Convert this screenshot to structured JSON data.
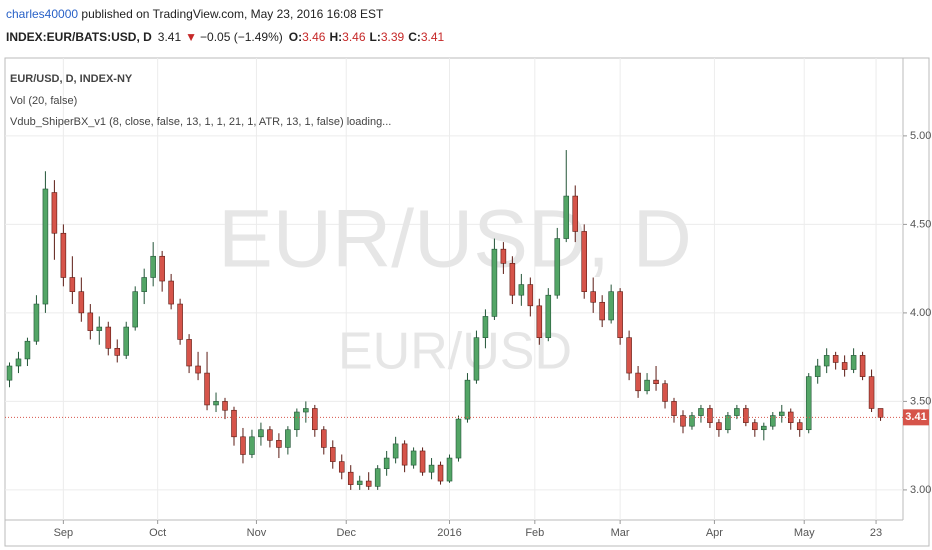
{
  "header": {
    "author": "charles40000",
    "published": " published on TradingView.com, May 23, 2016 16:08 EST",
    "symbol": "INDEX:EUR/BATS:USD, D",
    "last_price": "3.41",
    "arrow": "▼",
    "change": "−0.05 (−1.49%)",
    "ohlc": [
      {
        "label": "O:",
        "value": "3.46"
      },
      {
        "label": "H:",
        "value": "3.46"
      },
      {
        "label": "L:",
        "value": "3.39"
      },
      {
        "label": "C:",
        "value": "3.41"
      }
    ]
  },
  "chart_data": {
    "type": "candlestick",
    "legend_lines": [
      "EUR/USD, D, INDEX-NY",
      "Vol (20, false)",
      "Vdub_ShiperBX_v1 (8, close, false, 13, 1, 1, 21, 1, ATR, 13, 1, false) loading..."
    ],
    "watermark": [
      "EUR/USD, D",
      "EUR/USD"
    ],
    "up_color": "#53a566",
    "down_color": "#d6544a",
    "grid": true,
    "last": 3.41,
    "xlim": [
      0,
      100
    ],
    "xticks": [
      {
        "value": 6.5,
        "label": "Sep"
      },
      {
        "value": 17,
        "label": "Oct"
      },
      {
        "value": 28,
        "label": "Nov"
      },
      {
        "value": 38,
        "label": "Dec"
      },
      {
        "value": 49.5,
        "label": "2016"
      },
      {
        "value": 59,
        "label": "Feb"
      },
      {
        "value": 68.5,
        "label": "Mar"
      },
      {
        "value": 79,
        "label": "Apr"
      },
      {
        "value": 89,
        "label": "May"
      },
      {
        "value": 97,
        "label": "23"
      }
    ],
    "ylim": [
      2.83,
      5.44
    ],
    "yticks": [
      {
        "value": 3,
        "label": "3.00"
      },
      {
        "value": 3.5,
        "label": "3.50"
      },
      {
        "value": 4,
        "label": "4.00"
      },
      {
        "value": 4.5,
        "label": "4.50"
      },
      {
        "value": 5,
        "label": "5.00"
      }
    ],
    "candles": [
      [
        3.62,
        3.72,
        3.58,
        3.7
      ],
      [
        3.7,
        3.78,
        3.66,
        3.74
      ],
      [
        3.74,
        3.86,
        3.7,
        3.84
      ],
      [
        3.84,
        4.1,
        3.82,
        4.05
      ],
      [
        4.05,
        4.8,
        4.0,
        4.7
      ],
      [
        4.68,
        4.75,
        4.3,
        4.45
      ],
      [
        4.45,
        4.5,
        4.15,
        4.2
      ],
      [
        4.2,
        4.32,
        4.05,
        4.12
      ],
      [
        4.12,
        4.2,
        3.95,
        4.0
      ],
      [
        4.0,
        4.05,
        3.85,
        3.9
      ],
      [
        3.9,
        3.98,
        3.82,
        3.92
      ],
      [
        3.92,
        3.95,
        3.76,
        3.8
      ],
      [
        3.8,
        3.85,
        3.72,
        3.76
      ],
      [
        3.76,
        3.95,
        3.74,
        3.92
      ],
      [
        3.92,
        4.15,
        3.9,
        4.12
      ],
      [
        4.12,
        4.25,
        4.05,
        4.2
      ],
      [
        4.2,
        4.4,
        4.15,
        4.32
      ],
      [
        4.32,
        4.35,
        4.12,
        4.18
      ],
      [
        4.18,
        4.22,
        4.02,
        4.05
      ],
      [
        4.05,
        4.08,
        3.82,
        3.85
      ],
      [
        3.85,
        3.88,
        3.66,
        3.7
      ],
      [
        3.7,
        3.78,
        3.62,
        3.66
      ],
      [
        3.66,
        3.78,
        3.45,
        3.48
      ],
      [
        3.48,
        3.55,
        3.44,
        3.5
      ],
      [
        3.5,
        3.52,
        3.4,
        3.45
      ],
      [
        3.45,
        3.47,
        3.25,
        3.3
      ],
      [
        3.3,
        3.35,
        3.15,
        3.2
      ],
      [
        3.2,
        3.34,
        3.18,
        3.3
      ],
      [
        3.3,
        3.38,
        3.25,
        3.34
      ],
      [
        3.34,
        3.36,
        3.24,
        3.28
      ],
      [
        3.28,
        3.32,
        3.18,
        3.24
      ],
      [
        3.24,
        3.36,
        3.2,
        3.34
      ],
      [
        3.34,
        3.46,
        3.3,
        3.44
      ],
      [
        3.44,
        3.5,
        3.38,
        3.46
      ],
      [
        3.46,
        3.48,
        3.3,
        3.34
      ],
      [
        3.34,
        3.36,
        3.2,
        3.24
      ],
      [
        3.24,
        3.28,
        3.12,
        3.16
      ],
      [
        3.16,
        3.2,
        3.06,
        3.1
      ],
      [
        3.1,
        3.14,
        3.0,
        3.03
      ],
      [
        3.03,
        3.08,
        3.0,
        3.05
      ],
      [
        3.05,
        3.1,
        3.0,
        3.02
      ],
      [
        3.02,
        3.14,
        3.0,
        3.12
      ],
      [
        3.12,
        3.22,
        3.08,
        3.18
      ],
      [
        3.18,
        3.3,
        3.15,
        3.26
      ],
      [
        3.26,
        3.28,
        3.1,
        3.14
      ],
      [
        3.14,
        3.24,
        3.12,
        3.22
      ],
      [
        3.22,
        3.24,
        3.08,
        3.1
      ],
      [
        3.1,
        3.18,
        3.06,
        3.14
      ],
      [
        3.14,
        3.16,
        3.03,
        3.05
      ],
      [
        3.05,
        3.2,
        3.04,
        3.18
      ],
      [
        3.18,
        3.42,
        3.16,
        3.4
      ],
      [
        3.4,
        3.66,
        3.38,
        3.62
      ],
      [
        3.62,
        3.9,
        3.6,
        3.86
      ],
      [
        3.86,
        4.02,
        3.8,
        3.98
      ],
      [
        3.98,
        4.42,
        3.96,
        4.36
      ],
      [
        4.36,
        4.4,
        4.22,
        4.28
      ],
      [
        4.28,
        4.32,
        4.05,
        4.1
      ],
      [
        4.1,
        4.22,
        4.04,
        4.16
      ],
      [
        4.16,
        4.2,
        3.98,
        4.04
      ],
      [
        4.04,
        4.08,
        3.82,
        3.86
      ],
      [
        3.86,
        4.14,
        3.84,
        4.1
      ],
      [
        4.1,
        4.48,
        4.08,
        4.42
      ],
      [
        4.42,
        4.92,
        4.4,
        4.66
      ],
      [
        4.66,
        4.72,
        4.4,
        4.46
      ],
      [
        4.46,
        4.5,
        4.08,
        4.12
      ],
      [
        4.12,
        4.2,
        4.0,
        4.06
      ],
      [
        4.06,
        4.1,
        3.92,
        3.96
      ],
      [
        3.96,
        4.16,
        3.94,
        4.12
      ],
      [
        4.12,
        4.14,
        3.82,
        3.86
      ],
      [
        3.86,
        3.9,
        3.62,
        3.66
      ],
      [
        3.66,
        3.7,
        3.52,
        3.56
      ],
      [
        3.56,
        3.66,
        3.54,
        3.62
      ],
      [
        3.62,
        3.7,
        3.56,
        3.6
      ],
      [
        3.6,
        3.62,
        3.46,
        3.5
      ],
      [
        3.5,
        3.52,
        3.38,
        3.42
      ],
      [
        3.42,
        3.45,
        3.32,
        3.36
      ],
      [
        3.36,
        3.44,
        3.34,
        3.42
      ],
      [
        3.42,
        3.48,
        3.38,
        3.46
      ],
      [
        3.46,
        3.48,
        3.35,
        3.38
      ],
      [
        3.38,
        3.4,
        3.3,
        3.34
      ],
      [
        3.34,
        3.44,
        3.32,
        3.42
      ],
      [
        3.42,
        3.48,
        3.4,
        3.46
      ],
      [
        3.46,
        3.48,
        3.36,
        3.38
      ],
      [
        3.38,
        3.4,
        3.3,
        3.34
      ],
      [
        3.34,
        3.38,
        3.28,
        3.36
      ],
      [
        3.36,
        3.44,
        3.34,
        3.42
      ],
      [
        3.42,
        3.48,
        3.38,
        3.44
      ],
      [
        3.44,
        3.46,
        3.34,
        3.38
      ],
      [
        3.38,
        3.4,
        3.3,
        3.34
      ],
      [
        3.34,
        3.66,
        3.32,
        3.64
      ],
      [
        3.64,
        3.74,
        3.6,
        3.7
      ],
      [
        3.7,
        3.8,
        3.66,
        3.76
      ],
      [
        3.76,
        3.78,
        3.68,
        3.72
      ],
      [
        3.72,
        3.76,
        3.64,
        3.68
      ],
      [
        3.68,
        3.8,
        3.66,
        3.76
      ],
      [
        3.76,
        3.78,
        3.62,
        3.64
      ],
      [
        3.64,
        3.68,
        3.44,
        3.46
      ],
      [
        3.46,
        3.46,
        3.39,
        3.41
      ]
    ]
  }
}
